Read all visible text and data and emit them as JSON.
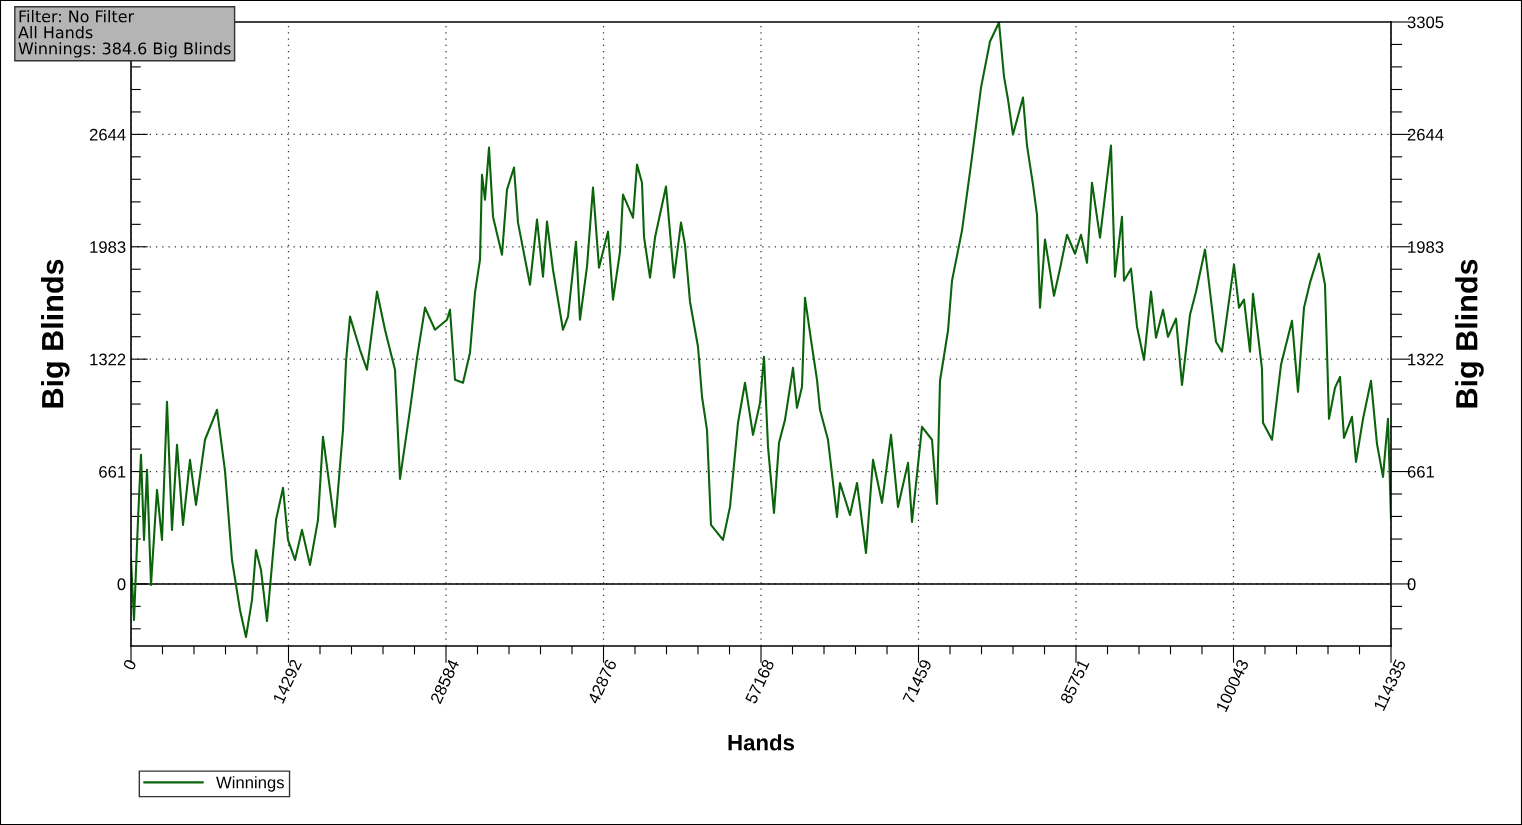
{
  "chart_data": {
    "type": "line",
    "xlabel": "Hands",
    "ylabel": "Big Blinds",
    "y2label": "Big Blinds",
    "annotations": [
      "Filter: No Filter",
      "All Hands",
      "Winnings: 384.6 Big Blinds"
    ],
    "x": [
      0,
      272,
      635,
      907,
      1180,
      1452,
      1815,
      2359,
      2813,
      3267,
      3720,
      4174,
      4719,
      5354,
      5898,
      6715,
      7804,
      8530,
      9165,
      9891,
      10435,
      10980,
      11343,
      11796,
      12341,
      13158,
      13793,
      14246,
      14882,
      15517,
      16243,
      16969,
      17422,
      18511,
      19237,
      19510,
      19872,
      20780,
      21415,
      22323,
      23048,
      23956,
      24410,
      25317,
      25952,
      26678,
      27586,
      28674,
      28947,
      29400,
      30126,
      30762,
      31215,
      31669,
      31850,
      32123,
      32486,
      32849,
      33665,
      34119,
      34754,
      35117,
      36206,
      36841,
      37386,
      37749,
      38293,
      39201,
      39654,
      40380,
      40743,
      41378,
      41923,
      42467,
      43284,
      43738,
      44373,
      44645,
      45553,
      45915,
      46369,
      46551,
      47095,
      47549,
      48547,
      49273,
      49908,
      50271,
      50725,
      51451,
      51814,
      52267,
      52630,
      53719,
      54354,
      55080,
      55716,
      56442,
      57077,
      57440,
      57803,
      58347,
      58801,
      59345,
      60071,
      60434,
      60888,
      61160,
      61705,
      62249,
      62521,
      63247,
      64064,
      64336,
      65243,
      65879,
      66695,
      67331,
      68147,
      68964,
      69599,
      70506,
      70869,
      71777,
      72684,
      73138,
      73410,
      74136,
      74499,
      75406,
      76223,
      77131,
      77947,
      78764,
      79218,
      79581,
      80034,
      80942,
      81305,
      81849,
      82212,
      82484,
      82938,
      83755,
      84299,
      84934,
      85660,
      86205,
      86749,
      87203,
      87929,
      88927,
      89290,
      89925,
      90107,
      90742,
      91286,
      91922,
      92557,
      93011,
      93646,
      94099,
      94825,
      95370,
      96096,
      96640,
      97457,
      98455,
      98999,
      100088,
      100542,
      100996,
      101540,
      101812,
      102629,
      102720,
      103537,
      104353,
      105351,
      105896,
      106440,
      106985,
      107801,
      108346,
      108709,
      109253,
      109707,
      110070,
      110796,
      111159,
      111794,
      112520,
      113064,
      113609,
      114062,
      114335
    ],
    "series": [
      {
        "name": "Winnings",
        "color": "#0b640b",
        "values": [
          141,
          -212,
          377,
          759,
          259,
          671,
          -6,
          553,
          259,
          1071,
          318,
          818,
          347,
          730,
          465,
          848,
          1024,
          665,
          141,
          -153,
          -312,
          -94,
          200,
          82,
          -218,
          377,
          565,
          259,
          141,
          318,
          112,
          377,
          865,
          336,
          906,
          1307,
          1572,
          1377,
          1260,
          1719,
          1495,
          1260,
          618,
          1024,
          1330,
          1625,
          1495,
          1554,
          1613,
          1201,
          1183,
          1360,
          1713,
          1907,
          2407,
          2260,
          2566,
          2160,
          1936,
          2319,
          2449,
          2125,
          1760,
          2143,
          1807,
          2131,
          1848,
          1495,
          1572,
          2013,
          1554,
          1866,
          2331,
          1860,
          2072,
          1672,
          1954,
          2290,
          2154,
          2466,
          2360,
          2042,
          1801,
          2037,
          2337,
          1801,
          2125,
          1995,
          1660,
          1395,
          1101,
          906,
          347,
          259,
          453,
          948,
          1183,
          877,
          1065,
          1336,
          806,
          418,
          830,
          965,
          1271,
          1036,
          1160,
          1683,
          1436,
          1201,
          1024,
          848,
          394,
          594,
          406,
          594,
          182,
          730,
          477,
          877,
          453,
          712,
          365,
          924,
          848,
          471,
          1195,
          1489,
          1783,
          2078,
          2466,
          2919,
          3190,
          3302,
          2984,
          2849,
          2643,
          2861,
          2578,
          2349,
          2172,
          1625,
          2025,
          1695,
          1854,
          2054,
          1942,
          2054,
          1889,
          2360,
          2037,
          2578,
          1807,
          2160,
          1783,
          1854,
          1513,
          1318,
          1719,
          1448,
          1613,
          1454,
          1560,
          1171,
          1583,
          1719,
          1966,
          1424,
          1366,
          1878,
          1625,
          1672,
          1366,
          1707,
          1265,
          948,
          848,
          1289,
          1548,
          1130,
          1625,
          1772,
          1942,
          1760,
          971,
          1154,
          1218,
          859,
          983,
          718,
          971,
          1195,
          824,
          630,
          971,
          385
        ]
      }
    ],
    "xlim": [
      0,
      114335
    ],
    "ylim": [
      -365,
      3305
    ],
    "y2lim": [
      -365,
      3305
    ],
    "xticks": [
      0,
      {
        "value": 2858,
        "label": null
      },
      {
        "value": 5717,
        "label": null
      },
      {
        "value": 8575,
        "label": null
      },
      {
        "value": 11434,
        "label": null
      },
      14292,
      {
        "value": 17150,
        "label": null
      },
      {
        "value": 20009,
        "label": null
      },
      {
        "value": 22867,
        "label": null
      },
      {
        "value": 25726,
        "label": null
      },
      28584,
      {
        "value": 31442,
        "label": null
      },
      {
        "value": 34301,
        "label": null
      },
      {
        "value": 37159,
        "label": null
      },
      {
        "value": 40018,
        "label": null
      },
      42876,
      {
        "value": 45734,
        "label": null
      },
      {
        "value": 48593,
        "label": null
      },
      {
        "value": 51451,
        "label": null
      },
      {
        "value": 54310,
        "label": null
      },
      57168,
      {
        "value": 60026,
        "label": null
      },
      {
        "value": 62885,
        "label": null
      },
      {
        "value": 65743,
        "label": null
      },
      {
        "value": 68602,
        "label": null
      },
      71459,
      {
        "value": 74318,
        "label": null
      },
      {
        "value": 77177,
        "label": null
      },
      {
        "value": 80035,
        "label": null
      },
      {
        "value": 82894,
        "label": null
      },
      85751,
      {
        "value": 88610,
        "label": null
      },
      {
        "value": 91469,
        "label": null
      },
      {
        "value": 94327,
        "label": null
      },
      {
        "value": 97186,
        "label": null
      },
      100043,
      {
        "value": 102902,
        "label": null
      },
      {
        "value": 105761,
        "label": null
      },
      {
        "value": 108619,
        "label": null
      },
      {
        "value": 111478,
        "label": null
      },
      114335
    ],
    "yticks": [
      {
        "value": -264,
        "label": null
      },
      {
        "value": -132,
        "label": null
      },
      0,
      {
        "value": 132,
        "label": null
      },
      {
        "value": 264,
        "label": null
      },
      {
        "value": 397,
        "label": null
      },
      {
        "value": 529,
        "label": null
      },
      661,
      {
        "value": 793,
        "label": null
      },
      {
        "value": 925,
        "label": null
      },
      {
        "value": 1058,
        "label": null
      },
      {
        "value": 1190,
        "label": null
      },
      1322,
      {
        "value": 1454,
        "label": null
      },
      {
        "value": 1586,
        "label": null
      },
      {
        "value": 1719,
        "label": null
      },
      {
        "value": 1851,
        "label": null
      },
      1983,
      {
        "value": 2115,
        "label": null
      },
      {
        "value": 2247,
        "label": null
      },
      {
        "value": 2380,
        "label": null
      },
      {
        "value": 2512,
        "label": null
      },
      2644,
      {
        "value": 2776,
        "label": null
      },
      {
        "value": 2908,
        "label": null
      },
      {
        "value": 3041,
        "label": null
      },
      {
        "value": 3173,
        "label": null
      },
      {
        "value": 3305,
        "label": null
      }
    ],
    "y2ticks": [
      {
        "value": -264,
        "label": null
      },
      {
        "value": -132,
        "label": null
      },
      0,
      {
        "value": 132,
        "label": null
      },
      {
        "value": 264,
        "label": null
      },
      {
        "value": 397,
        "label": null
      },
      {
        "value": 529,
        "label": null
      },
      661,
      {
        "value": 793,
        "label": null
      },
      {
        "value": 925,
        "label": null
      },
      {
        "value": 1058,
        "label": null
      },
      {
        "value": 1190,
        "label": null
      },
      1322,
      {
        "value": 1454,
        "label": null
      },
      {
        "value": 1586,
        "label": null
      },
      {
        "value": 1719,
        "label": null
      },
      {
        "value": 1851,
        "label": null
      },
      1983,
      {
        "value": 2115,
        "label": null
      },
      {
        "value": 2247,
        "label": null
      },
      {
        "value": 2380,
        "label": null
      },
      {
        "value": 2512,
        "label": null
      },
      2644,
      {
        "value": 2776,
        "label": null
      },
      {
        "value": 2908,
        "label": null
      },
      {
        "value": 3041,
        "label": null
      },
      {
        "value": 3173,
        "label": null
      },
      3305
    ],
    "ref_lines": [
      {
        "axis": "y",
        "value": 0,
        "color": "#000000",
        "line_style": "solid"
      }
    ],
    "grid": true,
    "legend": "bottom left",
    "marker": "none",
    "line_style": "solid"
  }
}
